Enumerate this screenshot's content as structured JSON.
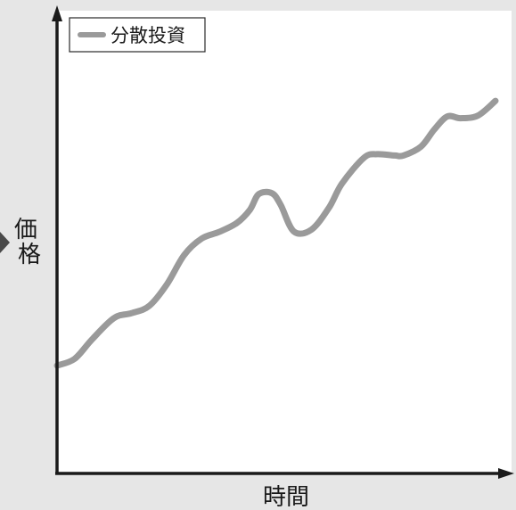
{
  "chart_data": {
    "type": "line",
    "title": "",
    "xlabel": "時間",
    "ylabel": "価格",
    "xlim": [
      0,
      100
    ],
    "ylim": [
      0,
      100
    ],
    "grid": false,
    "legend_position": "top-left",
    "series": [
      {
        "name": "分散投資",
        "color": "#9a9a9a",
        "x": [
          0,
          4,
          8,
          13,
          17,
          21,
          25,
          29,
          33,
          37,
          41,
          44,
          46,
          49,
          51,
          54,
          58,
          62,
          65,
          70,
          73,
          77,
          79,
          83,
          86,
          89,
          92,
          96,
          100
        ],
        "y": [
          22.7,
          24.2,
          28.6,
          33.4,
          34.5,
          36.1,
          40.9,
          47.6,
          51.3,
          52.8,
          54.8,
          57.8,
          61.3,
          61.5,
          58.9,
          52.9,
          53.3,
          58.2,
          63.7,
          69.5,
          70.3,
          70.0,
          70.0,
          72.0,
          75.8,
          78.8,
          78.4,
          79.0,
          82.3
        ]
      }
    ]
  }
}
